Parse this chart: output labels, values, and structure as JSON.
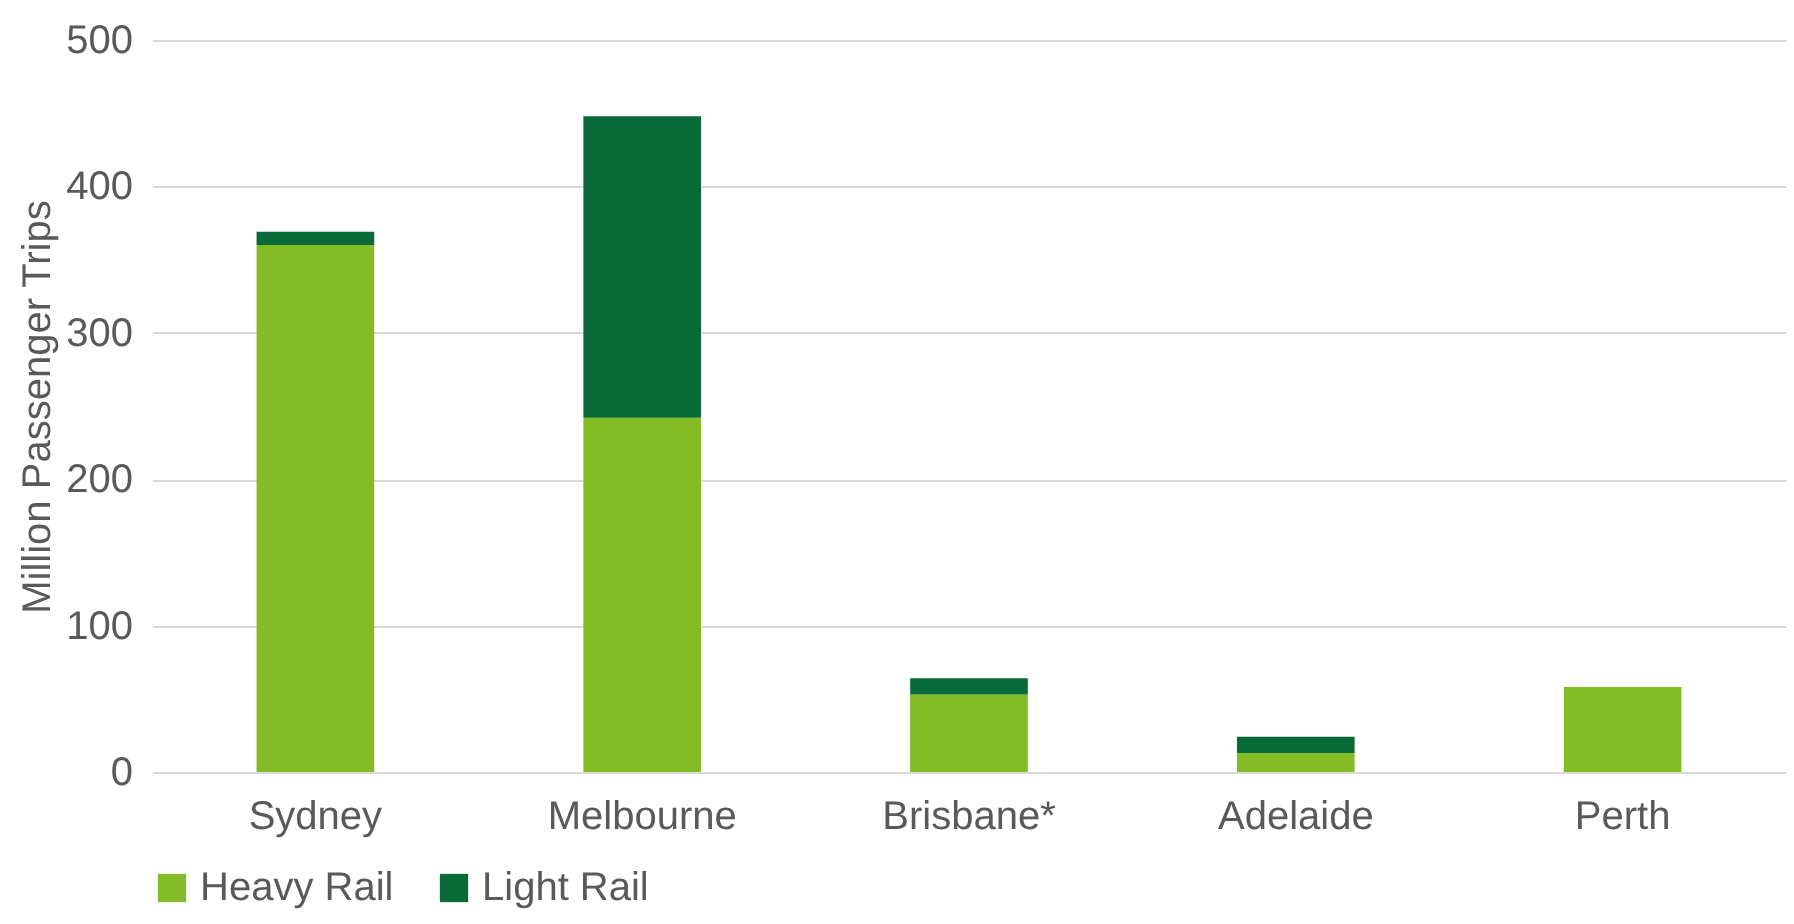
{
  "chart_data": {
    "type": "bar",
    "stacked": true,
    "ylabel": "Million Passenger Trips",
    "categories": [
      "Sydney",
      "Melbourne",
      "Brisbane*",
      "Adelaide",
      "Perth"
    ],
    "series": [
      {
        "name": "Heavy Rail",
        "color": "#84bc26",
        "values": [
          360,
          242,
          53,
          13,
          58
        ]
      },
      {
        "name": "Light Rail",
        "color": "#086b37",
        "values": [
          9,
          206,
          11,
          11,
          0
        ]
      }
    ],
    "ylim": [
      0,
      500
    ],
    "yticks": [
      0,
      100,
      200,
      300,
      400,
      500
    ],
    "grid": "y",
    "legend": "bottom"
  }
}
